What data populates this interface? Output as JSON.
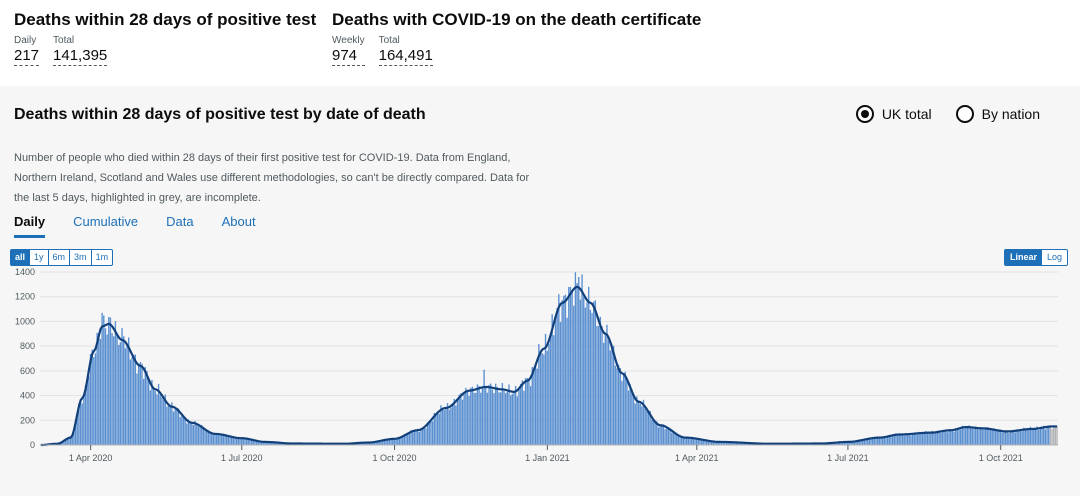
{
  "headline": {
    "left": {
      "title": "Deaths within 28 days of positive test",
      "metrics": [
        {
          "label": "Daily",
          "value": "217"
        },
        {
          "label": "Total",
          "value": "141,395"
        }
      ]
    },
    "right": {
      "title": "Deaths with COVID-19 on the death certificate",
      "metrics": [
        {
          "label": "Weekly",
          "value": "974"
        },
        {
          "label": "Total",
          "value": "164,491"
        }
      ]
    }
  },
  "card": {
    "title": "Deaths within 28 days of positive test by date of death",
    "radio_uk": "UK total",
    "radio_nation": "By nation",
    "description": "Number of people who died within 28 days of their first positive test for COVID-19. Data from England, Northern Ireland, Scotland and Wales use different methodologies, so can't be directly compared. Data for the last 5 days, highlighted in grey, are incomplete.",
    "tabs": [
      "Daily",
      "Cumulative",
      "Data",
      "About"
    ],
    "range_buttons": [
      "all",
      "1y",
      "6m",
      "3m",
      "1m"
    ],
    "scale_buttons": [
      "Linear",
      "Log"
    ]
  },
  "colors": {
    "bar": "#5a8fd0",
    "bar_incomplete": "#b1b4b6",
    "line": "#12407a",
    "link": "#1d70b8"
  },
  "chart_data": {
    "type": "bar",
    "series": [
      {
        "values_description": "daily deaths (bars)"
      },
      {
        "values_description": "7-day rolling average (line)"
      }
    ],
    "x_start": "2020-03-02",
    "x_end": "2021-11-04",
    "ylim": [
      0,
      1400
    ],
    "y_ticks": [
      0,
      200,
      400,
      600,
      800,
      1000,
      1200,
      1400
    ],
    "x_ticks": [
      {
        "date": "2020-04-01",
        "label": "1 Apr 2020"
      },
      {
        "date": "2020-07-01",
        "label": "1 Jul 2020"
      },
      {
        "date": "2020-10-01",
        "label": "1 Oct 2020"
      },
      {
        "date": "2021-01-01",
        "label": "1 Jan 2021"
      },
      {
        "date": "2021-04-01",
        "label": "1 Apr 2021"
      },
      {
        "date": "2021-07-01",
        "label": "1 Jul 2021"
      },
      {
        "date": "2021-10-01",
        "label": "1 Oct 2021"
      }
    ],
    "average_keypoints": [
      [
        "2020-03-02",
        0
      ],
      [
        "2020-03-12",
        10
      ],
      [
        "2020-03-20",
        60
      ],
      [
        "2020-03-27",
        380
      ],
      [
        "2020-04-03",
        760
      ],
      [
        "2020-04-08",
        960
      ],
      [
        "2020-04-12",
        980
      ],
      [
        "2020-04-20",
        850
      ],
      [
        "2020-05-01",
        640
      ],
      [
        "2020-05-10",
        450
      ],
      [
        "2020-05-20",
        310
      ],
      [
        "2020-06-01",
        180
      ],
      [
        "2020-06-15",
        90
      ],
      [
        "2020-07-01",
        55
      ],
      [
        "2020-07-15",
        25
      ],
      [
        "2020-08-01",
        12
      ],
      [
        "2020-09-01",
        10
      ],
      [
        "2020-09-15",
        20
      ],
      [
        "2020-10-01",
        50
      ],
      [
        "2020-10-15",
        120
      ],
      [
        "2020-11-01",
        300
      ],
      [
        "2020-11-15",
        440
      ],
      [
        "2020-11-25",
        470
      ],
      [
        "2020-12-05",
        450
      ],
      [
        "2020-12-12",
        430
      ],
      [
        "2020-12-20",
        520
      ],
      [
        "2020-12-30",
        780
      ],
      [
        "2021-01-10",
        1150
      ],
      [
        "2021-01-19",
        1280
      ],
      [
        "2021-01-27",
        1150
      ],
      [
        "2021-02-05",
        900
      ],
      [
        "2021-02-15",
        580
      ],
      [
        "2021-02-25",
        350
      ],
      [
        "2021-03-10",
        160
      ],
      [
        "2021-03-25",
        60
      ],
      [
        "2021-04-15",
        25
      ],
      [
        "2021-05-15",
        10
      ],
      [
        "2021-06-15",
        12
      ],
      [
        "2021-07-01",
        25
      ],
      [
        "2021-07-20",
        60
      ],
      [
        "2021-08-01",
        85
      ],
      [
        "2021-08-20",
        100
      ],
      [
        "2021-09-01",
        120
      ],
      [
        "2021-09-10",
        145
      ],
      [
        "2021-09-20",
        135
      ],
      [
        "2021-10-05",
        110
      ],
      [
        "2021-10-20",
        130
      ],
      [
        "2021-11-01",
        150
      ]
    ],
    "spikes": [
      [
        "2020-04-08",
        1070
      ],
      [
        "2020-04-21",
        880
      ],
      [
        "2020-05-05",
        600
      ],
      [
        "2020-11-24",
        610
      ],
      [
        "2021-01-20",
        1360
      ],
      [
        "2021-01-15",
        1280
      ]
    ],
    "incomplete_days": 5,
    "xlabel": "",
    "ylabel": ""
  }
}
